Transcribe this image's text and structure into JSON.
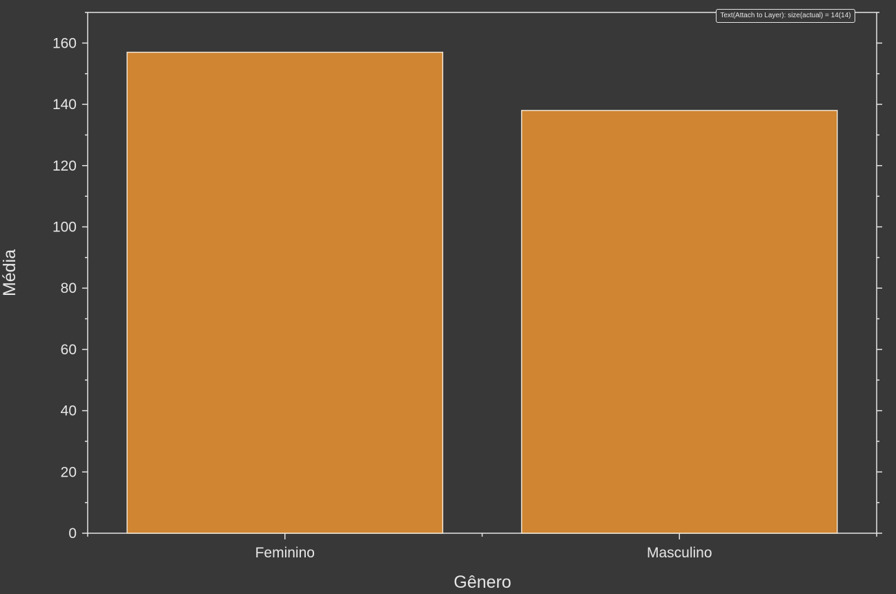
{
  "tooltip_text": "Text(Attach to Layer): size(actual) = 14(14)",
  "colors": {
    "background": "#383838",
    "bar_fill": "#cf8532",
    "bar_edge": "#f2e6d6",
    "axis": "#e6e6e6",
    "text": "#e6e6e6"
  },
  "chart_data": {
    "type": "bar",
    "categories": [
      "Feminino",
      "Masculino"
    ],
    "values": [
      157,
      138
    ],
    "title": "",
    "xlabel": "Gênero",
    "ylabel": "Média",
    "ylim": [
      0,
      170
    ],
    "yticks": [
      0,
      20,
      40,
      60,
      80,
      100,
      120,
      140,
      160
    ],
    "grid": false,
    "legend": "none"
  }
}
